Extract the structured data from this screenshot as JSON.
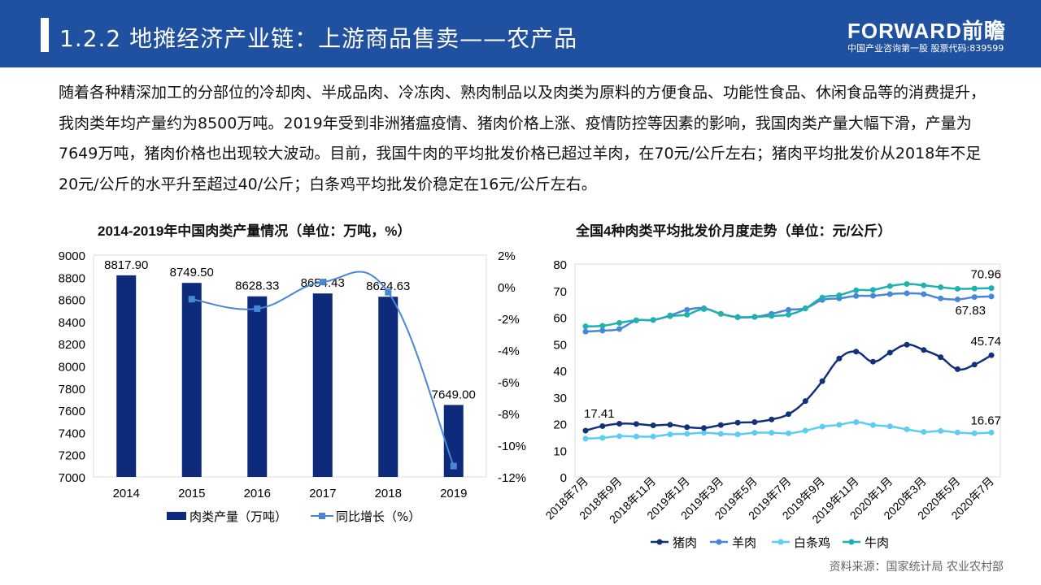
{
  "header": {
    "title": "1.2.2 地摊经济产业链：上游商品售卖——农产品",
    "logo": "FORWARD前瞻",
    "logo_sub": "中国产业咨询第一股 股票代码:839599",
    "color": "#2050a0"
  },
  "paragraph": "随着各种精深加工的分部位的冷却肉、半成品肉、冷冻肉、熟肉制品以及肉类为原料的方便食品、功能性食品、休闲食品等的消费提升，我肉类年均产量约为8500万吨。2019年受到非洲猪瘟疫情、猪肉价格上涨、疫情防控等因素的影响，我国肉类产量大幅下滑，产量为7649万吨，猪肉价格也出现较大波动。目前，我国牛肉的平均批发价格已超过羊肉，在70元/公斤左右；猪肉平均批发价从2018年不足20元/公斤的水平升至超过40/公斤；白条鸡平均批发价稳定在16元/公斤左右。",
  "source": "资料来源：国家统计局 农业农村部",
  "chart_data": [
    {
      "type": "bar",
      "title": "2014-2019年中国肉类产量情况（单位：万吨，%）",
      "categories": [
        "2014",
        "2015",
        "2016",
        "2017",
        "2018",
        "2019"
      ],
      "series": [
        {
          "name": "肉类产量（万吨）",
          "type": "bar",
          "axis": "left",
          "values": [
            8817.9,
            8749.5,
            8628.33,
            8654.43,
            8624.63,
            7649.0
          ],
          "labels": [
            "8817.90",
            "8749.50",
            "8628.33",
            "8654.43",
            "8624.63",
            "7649.00"
          ],
          "color": "#0e2a7a"
        },
        {
          "name": "同比增长（%）",
          "type": "line",
          "axis": "right",
          "values": [
            null,
            -0.78,
            -1.38,
            0.3,
            -0.34,
            -11.31
          ],
          "color": "#4a86d8"
        }
      ],
      "ylim": [
        7000,
        9000
      ],
      "yticks": [
        "9000",
        "8800",
        "8600",
        "8400",
        "8200",
        "8000",
        "7800",
        "7600",
        "7400",
        "7200",
        "7000"
      ],
      "y2lim": [
        -12,
        2
      ],
      "y2ticks": [
        "2%",
        "0%",
        "-2%",
        "-4%",
        "-6%",
        "-8%",
        "-10%",
        "-12%"
      ],
      "legend": "bottom",
      "grid": false
    },
    {
      "type": "line",
      "title": "全国4种肉类平均批发价月度走势（单位：元/公斤）",
      "x": [
        "2018年7月",
        "2018年8月",
        "2018年9月",
        "2018年10月",
        "2018年11月",
        "2018年12月",
        "2019年1月",
        "2019年2月",
        "2019年3月",
        "2019年4月",
        "2019年5月",
        "2019年6月",
        "2019年7月",
        "2019年8月",
        "2019年9月",
        "2019年10月",
        "2019年11月",
        "2019年12月",
        "2020年1月",
        "2020年2月",
        "2020年3月",
        "2020年4月",
        "2020年5月",
        "2020年6月",
        "2020年7月"
      ],
      "xticks": [
        "2018年7月",
        "2018年9月",
        "2018年11月",
        "2019年1月",
        "2019年3月",
        "2019年5月",
        "2019年7月",
        "2019年9月",
        "2019年11月",
        "2020年1月",
        "2020年3月",
        "2020年5月",
        "2020年7月"
      ],
      "series": [
        {
          "name": "猪肉",
          "color": "#13307a",
          "values": [
            17.41,
            19.1,
            20.0,
            19.9,
            19.4,
            19.6,
            18.7,
            18.4,
            19.5,
            20.4,
            20.6,
            21.6,
            23.6,
            28.5,
            36.0,
            44.5,
            47.1,
            43.3,
            46.7,
            49.7,
            47.7,
            45.0,
            40.5,
            42.2,
            45.74
          ],
          "labels": {
            "first": "17.41",
            "last": "45.74"
          }
        },
        {
          "name": "羊肉",
          "color": "#4a86d8",
          "values": [
            54.6,
            55.0,
            55.6,
            58.8,
            59.0,
            60.7,
            62.8,
            63.4,
            61.3,
            60.0,
            60.2,
            61.3,
            62.8,
            63.4,
            66.5,
            67.1,
            68.0,
            68.1,
            68.7,
            69.0,
            68.7,
            67.1,
            66.7,
            67.6,
            67.83
          ],
          "labels": {
            "last": "67.83"
          }
        },
        {
          "name": "白条鸡",
          "color": "#5ccdf0",
          "values": [
            14.4,
            14.7,
            15.3,
            15.2,
            15.2,
            16.0,
            16.2,
            16.6,
            16.2,
            16.0,
            16.6,
            16.6,
            16.4,
            17.4,
            18.9,
            19.6,
            20.6,
            19.5,
            19.0,
            17.9,
            16.9,
            17.3,
            16.7,
            16.4,
            16.67
          ],
          "labels": {
            "last": "16.67"
          }
        },
        {
          "name": "牛肉",
          "color": "#1fb0b0",
          "values": [
            56.6,
            56.8,
            57.9,
            58.9,
            59.0,
            60.4,
            61.0,
            63.1,
            61.3,
            60.1,
            60.1,
            60.5,
            61.0,
            63.3,
            67.4,
            68.3,
            70.1,
            70.3,
            71.7,
            72.5,
            72.0,
            71.3,
            70.7,
            70.8,
            70.96
          ],
          "labels": {
            "last": "70.96"
          }
        }
      ],
      "ylim": [
        0,
        80
      ],
      "yticks": [
        "80",
        "70",
        "60",
        "50",
        "40",
        "30",
        "20",
        "10",
        "0"
      ],
      "legend": "bottom",
      "grid": false
    }
  ]
}
